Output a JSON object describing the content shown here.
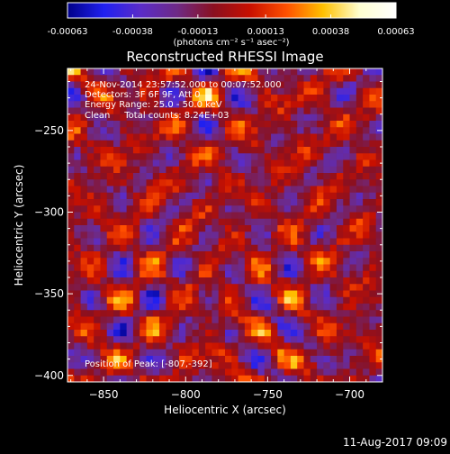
{
  "chart_data": {
    "type": "heatmap",
    "title": "Reconstructed RHESSI Image",
    "xlabel": "Heliocentric X (arcsec)",
    "ylabel": "Heliocentric Y (arcsec)",
    "xlim": [
      -872,
      -680
    ],
    "ylim": [
      -404,
      -212
    ],
    "x_ticks": [
      -850,
      -800,
      -750,
      -700
    ],
    "y_ticks": [
      -400,
      -350,
      -300,
      -250
    ],
    "x_tick_labels": [
      "−850",
      "−800",
      "−750",
      "−700"
    ],
    "y_tick_labels": [
      "−400",
      "−350",
      "−300",
      "−250"
    ],
    "colorbar": {
      "min": -0.00063,
      "max": 0.00063,
      "tick_labels": [
        "-0.00063",
        "-0.00038",
        "-0.00013",
        "0.00013",
        "0.00038",
        "0.00063"
      ],
      "unit_label": "(photons cm⁻² s⁻¹ asec⁻²)",
      "colors": [
        "#000088",
        "#2020f0",
        "#5a2cc8",
        "#6e2a86",
        "#8a1020",
        "#c81000",
        "#ff5000",
        "#ffc000",
        "#ffffd0",
        "#ffffff"
      ]
    },
    "annotations": [
      "24-Nov-2014 23:57:52.000 to 00:07:52.000",
      "Detectors: 3F 6F 9F, Att 0",
      "Energy Range: 25.0 - 50.0 keV",
      "Clean     Total counts: 8.24E+03"
    ],
    "peak_label": "Position of Peak: [-807,-392]",
    "peak_position": [
      -807,
      -392
    ],
    "grid_size": [
      48,
      48
    ]
  },
  "footer": {
    "timestamp": "11-Aug-2017 09:09"
  }
}
